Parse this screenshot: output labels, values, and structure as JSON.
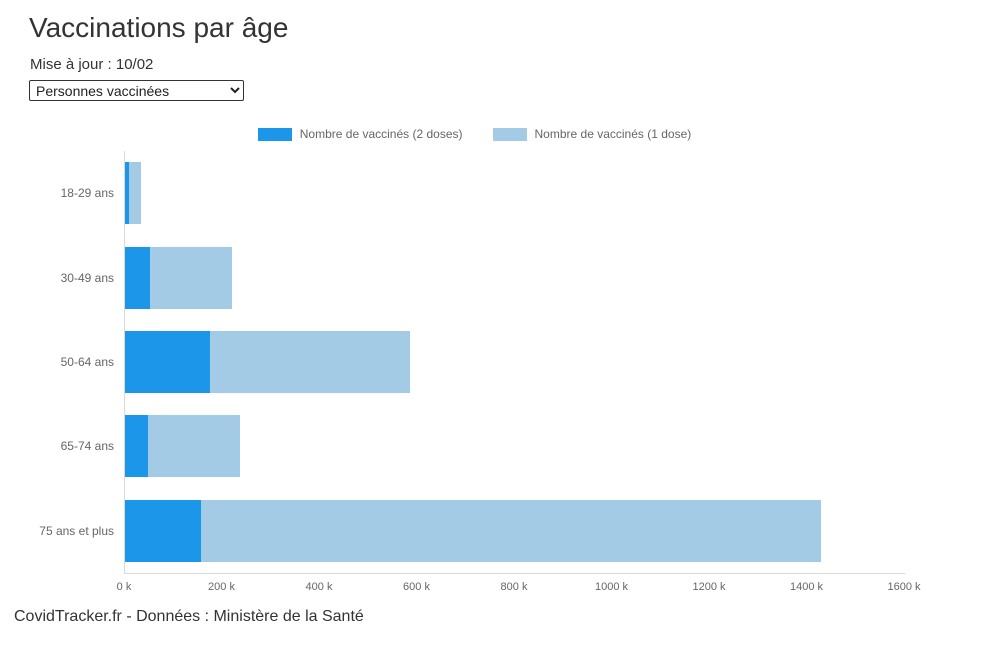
{
  "page": {
    "title": "Vaccinations par âge",
    "updated_label": "Mise à jour : 10/02",
    "footer": "CovidTracker.fr - Données : Ministère de la Santé"
  },
  "controls": {
    "metric_select": {
      "selected": "Personnes vaccinées",
      "options": [
        "Personnes vaccinées"
      ]
    }
  },
  "colors": {
    "doses2": "#1b96e9",
    "dose1": "#a3cbe6",
    "axis_line": "#d9d9d9",
    "label_text": "#666666",
    "title_text": "#333333"
  },
  "chart_data": {
    "type": "bar",
    "orientation": "horizontal",
    "stacked": true,
    "grid": false,
    "legend_position": "top",
    "title": "Vaccinations par âge",
    "categories": [
      "18-29 ans",
      "30-49 ans",
      "50-64 ans",
      "65-74 ans",
      "75 ans et plus"
    ],
    "unit": "thousands",
    "series": [
      {
        "name": "Nombre de vaccinés (2 doses)",
        "color": "#1b96e9",
        "values_k": [
          9,
          52,
          175,
          48,
          155
        ]
      },
      {
        "name": "Nombre de vaccinés (1 dose)",
        "color": "#a3cbe6",
        "values_k": [
          24,
          168,
          410,
          187,
          1272
        ]
      }
    ],
    "stack_totals_k": [
      33,
      220,
      585,
      235,
      1427
    ],
    "xlim": [
      0,
      1600
    ],
    "x_ticks": [
      "0 k",
      "200 k",
      "400 k",
      "600 k",
      "800 k",
      "1000 k",
      "1200 k",
      "1400 k",
      "1600 k"
    ]
  }
}
